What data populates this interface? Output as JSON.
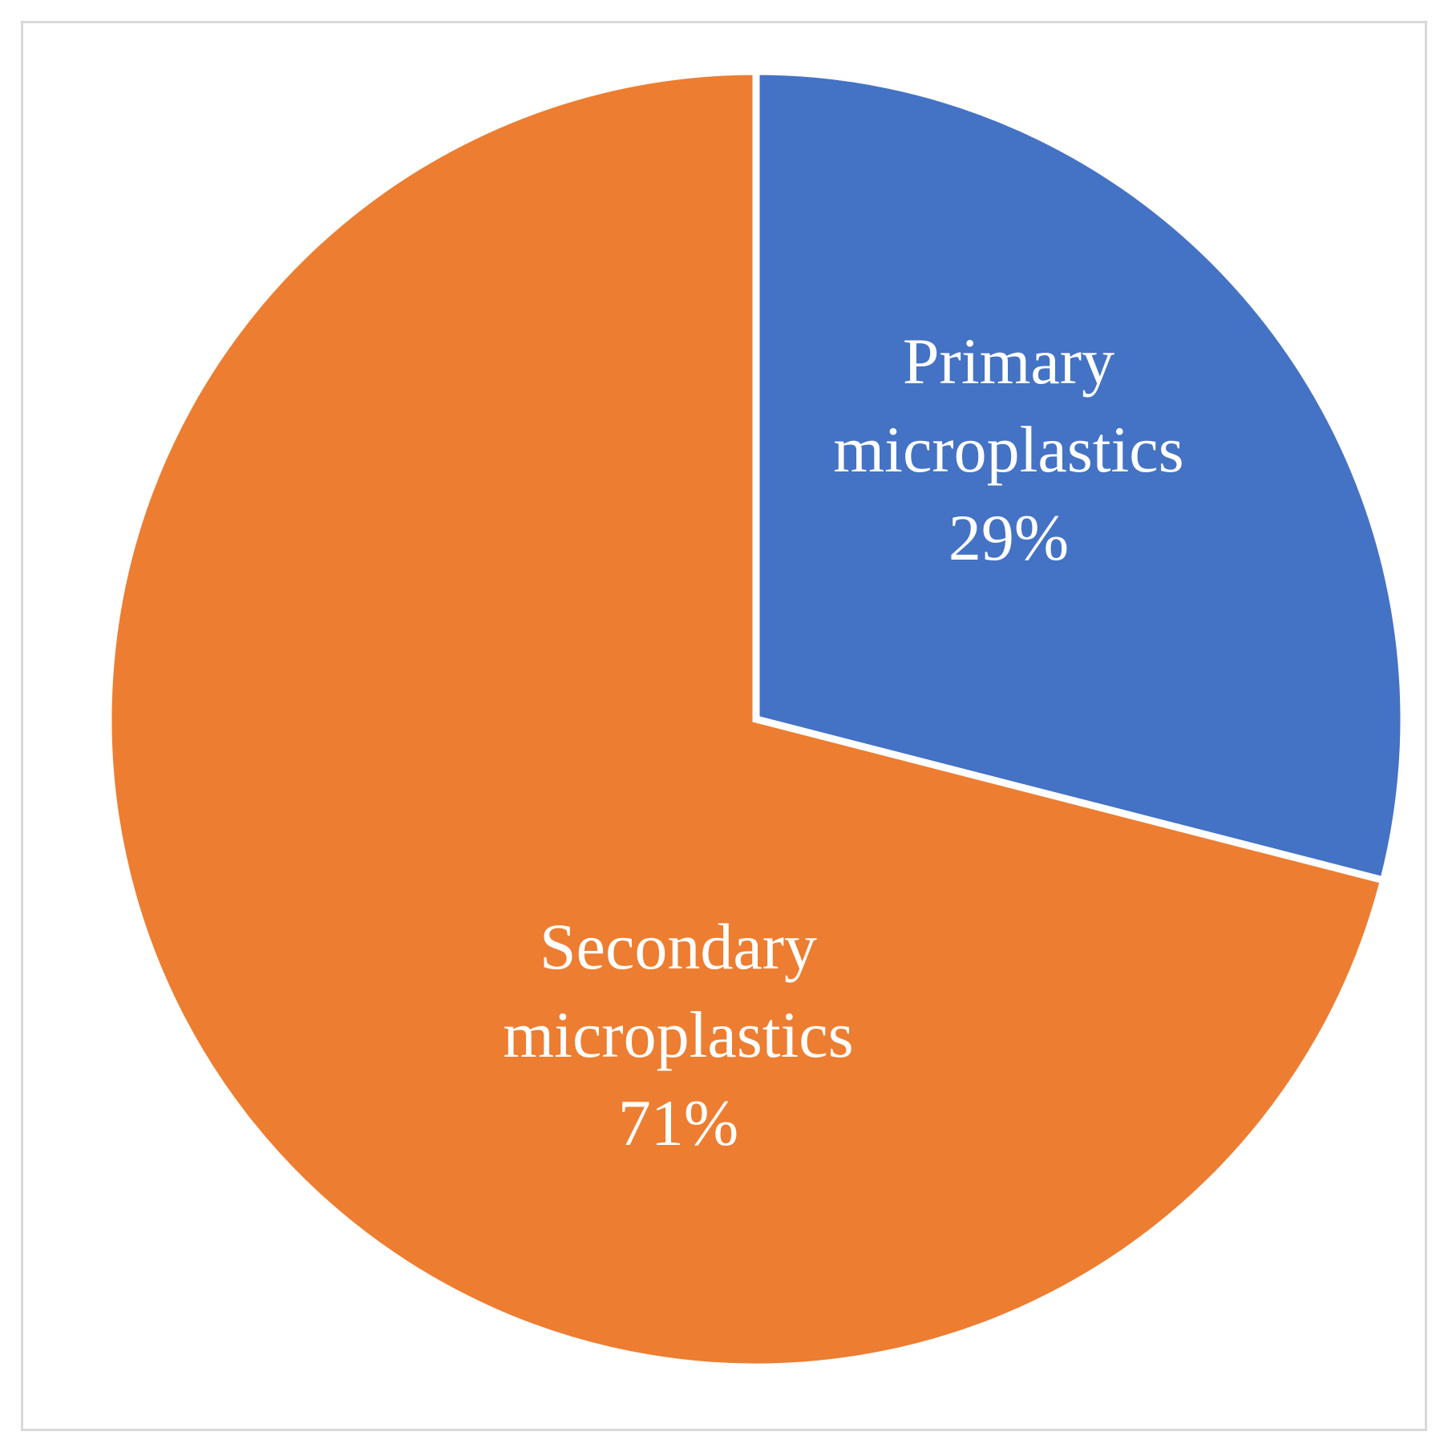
{
  "chart_data": {
    "type": "pie",
    "title": "",
    "slices": [
      {
        "label_line1": "Primary",
        "label_line2": "microplastics",
        "percent_label": "29%",
        "value": 29,
        "color": "#4472C4"
      },
      {
        "label_line1": "Secondary",
        "label_line2": "microplastics",
        "percent_label": "71%",
        "value": 71,
        "color": "#ED7D31"
      }
    ],
    "start_angle_deg": 0,
    "direction": "clockwise",
    "legend": "none",
    "slice_border_color": "#FFFFFF"
  }
}
